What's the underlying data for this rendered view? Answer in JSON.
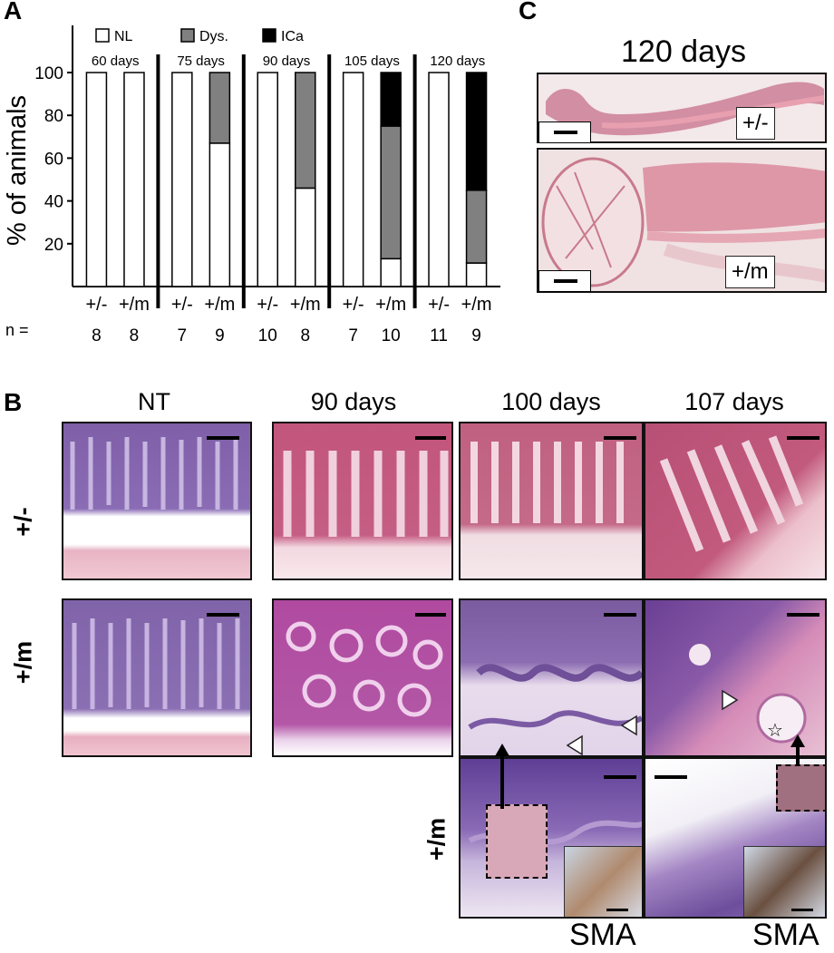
{
  "panel_labels": {
    "a": "A",
    "b": "B",
    "c": "C"
  },
  "chart_data": {
    "type": "bar",
    "stacked": true,
    "ylabel": "% of animals",
    "ylim": [
      0,
      100
    ],
    "yticks": [
      "20",
      "40",
      "60",
      "80",
      "100"
    ],
    "legend": {
      "placement": "top",
      "entries": [
        {
          "name": "NL",
          "color": "#ffffff"
        },
        {
          "name": "Dys.",
          "color": "#808080"
        },
        {
          "name": "ICa",
          "color": "#000000"
        }
      ]
    },
    "groups": [
      "60 days",
      "75 days",
      "90 days",
      "105 days",
      "120 days"
    ],
    "categories": [
      "+/-",
      "+/m",
      "+/-",
      "+/m",
      "+/-",
      "+/m",
      "+/-",
      "+/m",
      "+/-",
      "+/m"
    ],
    "n_label": "n =",
    "n_values": [
      "8",
      "8",
      "7",
      "9",
      "10",
      "8",
      "7",
      "10",
      "11",
      "9"
    ],
    "series": [
      {
        "name": "NL",
        "values": [
          100,
          100,
          100,
          67,
          100,
          46,
          100,
          13,
          100,
          11
        ]
      },
      {
        "name": "Dys.",
        "values": [
          0,
          0,
          0,
          33,
          0,
          54,
          0,
          62,
          0,
          34
        ]
      },
      {
        "name": "ICa",
        "values": [
          0,
          0,
          0,
          0,
          0,
          0,
          0,
          25,
          0,
          55
        ]
      }
    ]
  },
  "panel_b": {
    "columns": [
      "NT",
      "90 days",
      "100 days",
      "107 days"
    ],
    "rows": [
      "+/-",
      "+/m",
      "+/m"
    ],
    "stain_labels": [
      "SMA",
      "SMA"
    ]
  },
  "panel_c": {
    "title": "120 days",
    "labels": [
      "+/-",
      "+/m"
    ]
  }
}
